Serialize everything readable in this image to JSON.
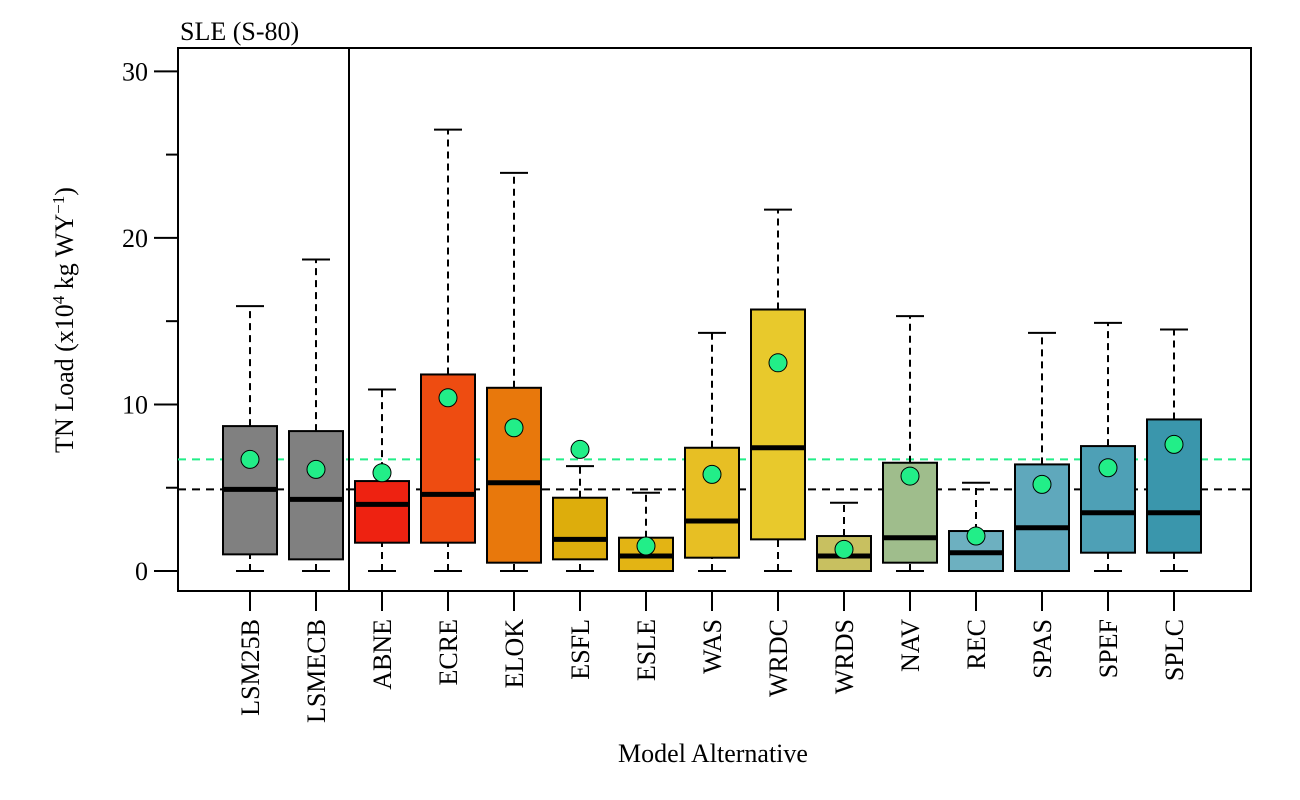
{
  "chart_data": {
    "type": "boxplot",
    "title": "SLE (S-80)",
    "xlabel": "Model Alternative",
    "ylabel_main": "TN Load (x10",
    "ylabel_sup": "4",
    "ylabel_rest": " kg WY",
    "ylabel_sup2": "−1",
    "ylabel_end": ")",
    "ylim": [
      -1.2,
      31.4
    ],
    "y_ticks": [
      0,
      10,
      20,
      30
    ],
    "y_minor_ticks": [
      5,
      15,
      25
    ],
    "baseline_separator_after": "LSMECB",
    "reference_lines": [
      {
        "label": "LSM25B mean",
        "value": 6.7,
        "color": "#22ee88"
      },
      {
        "label": "LSM25B median",
        "value": 4.9,
        "color": "#000000"
      }
    ],
    "categories": [
      "LSM25B",
      "LSMECB",
      "ABNE",
      "ECRE",
      "ELOK",
      "ESFL",
      "ESLE",
      "WAS",
      "WRDC",
      "WRDS",
      "NAV",
      "REC",
      "SPAS",
      "SPEF",
      "SPLC"
    ],
    "boxes": [
      {
        "name": "LSM25B",
        "min": 0.0,
        "q1": 1.0,
        "median": 4.9,
        "q3": 8.7,
        "max": 15.9,
        "mean": 6.7,
        "color": "#808080"
      },
      {
        "name": "LSMECB",
        "min": 0.0,
        "q1": 0.7,
        "median": 4.3,
        "q3": 8.4,
        "max": 18.7,
        "mean": 6.1,
        "color": "#808080"
      },
      {
        "name": "ABNE",
        "min": 0.0,
        "q1": 1.7,
        "median": 4.0,
        "q3": 5.4,
        "max": 10.9,
        "mean": 5.9,
        "color": "#ee2211"
      },
      {
        "name": "ECRE",
        "min": 0.0,
        "q1": 1.7,
        "median": 4.6,
        "q3": 11.8,
        "max": 26.5,
        "mean": 10.4,
        "color": "#ee4c11"
      },
      {
        "name": "ELOK",
        "min": 0.0,
        "q1": 0.5,
        "median": 5.3,
        "q3": 11.0,
        "max": 23.9,
        "mean": 8.6,
        "color": "#e8780c"
      },
      {
        "name": "ESFL",
        "min": 0.0,
        "q1": 0.7,
        "median": 1.9,
        "q3": 4.4,
        "max": 6.3,
        "mean": 7.3,
        "color": "#ddad0c"
      },
      {
        "name": "ESLE",
        "min": 0.0,
        "q1": 0.0,
        "median": 0.9,
        "q3": 2.0,
        "max": 4.7,
        "mean": 1.5,
        "color": "#e3b414"
      },
      {
        "name": "WAS",
        "min": 0.0,
        "q1": 0.8,
        "median": 3.0,
        "q3": 7.4,
        "max": 14.3,
        "mean": 5.8,
        "color": "#e7bf24"
      },
      {
        "name": "WRDC",
        "min": 0.0,
        "q1": 1.9,
        "median": 7.4,
        "q3": 15.7,
        "max": 21.7,
        "mean": 12.5,
        "color": "#e8c92c"
      },
      {
        "name": "WRDS",
        "min": 0.0,
        "q1": 0.0,
        "median": 0.9,
        "q3": 2.1,
        "max": 4.1,
        "mean": 1.3,
        "color": "#c8c060"
      },
      {
        "name": "NAV",
        "min": 0.0,
        "q1": 0.5,
        "median": 2.0,
        "q3": 6.5,
        "max": 15.3,
        "mean": 5.7,
        "color": "#9fbd8c"
      },
      {
        "name": "REC",
        "min": 0.0,
        "q1": 0.0,
        "median": 1.1,
        "q3": 2.4,
        "max": 5.3,
        "mean": 2.1,
        "color": "#6db0c0"
      },
      {
        "name": "SPAS",
        "min": 0.0,
        "q1": 0.0,
        "median": 2.6,
        "q3": 6.4,
        "max": 14.3,
        "mean": 5.2,
        "color": "#5fa8bc"
      },
      {
        "name": "SPEF",
        "min": 0.0,
        "q1": 1.1,
        "median": 3.5,
        "q3": 7.5,
        "max": 14.9,
        "mean": 6.2,
        "color": "#4ea0b6"
      },
      {
        "name": "SPLC",
        "min": 0.0,
        "q1": 1.1,
        "median": 3.5,
        "q3": 9.1,
        "max": 14.5,
        "mean": 7.6,
        "color": "#3a96ac"
      }
    ],
    "mean_marker_color": "#22ee88",
    "grid": false,
    "legend": "none"
  }
}
